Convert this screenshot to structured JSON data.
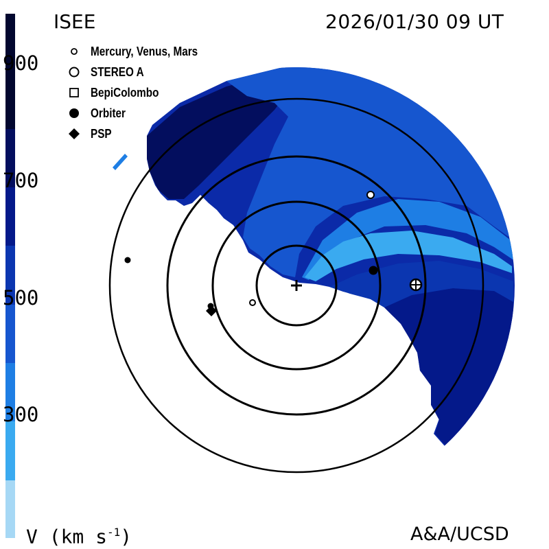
{
  "header": {
    "title": "ISEE",
    "timestamp": "2026/01/30 09 UT"
  },
  "legend": {
    "items": [
      {
        "label": "Mercury, Venus, Mars",
        "symbol": "small-open-circle-icon"
      },
      {
        "label": "STEREO A",
        "symbol": "open-circle-icon"
      },
      {
        "label": "BepiColombo",
        "symbol": "open-square-icon"
      },
      {
        "label": "Orbiter",
        "symbol": "filled-circle-icon"
      },
      {
        "label": "PSP",
        "symbol": "filled-diamond-icon"
      }
    ]
  },
  "colorbar": {
    "quantity": "V (km s",
    "unit_exp": "-1",
    "unit_close": ")",
    "ticks": [
      "900",
      "700",
      "500",
      "300"
    ],
    "min": 200,
    "max": 1000,
    "colors": [
      "#a6d8f5",
      "#3aaaf0",
      "#1e7ee4",
      "#1656cf",
      "#0b36b0",
      "#04198a",
      "#030e5e",
      "#02072f"
    ]
  },
  "credit": "A&A/UCSD",
  "colors": {
    "sun": "#000000",
    "orbits": "#000000",
    "background": "#ffffff"
  }
}
